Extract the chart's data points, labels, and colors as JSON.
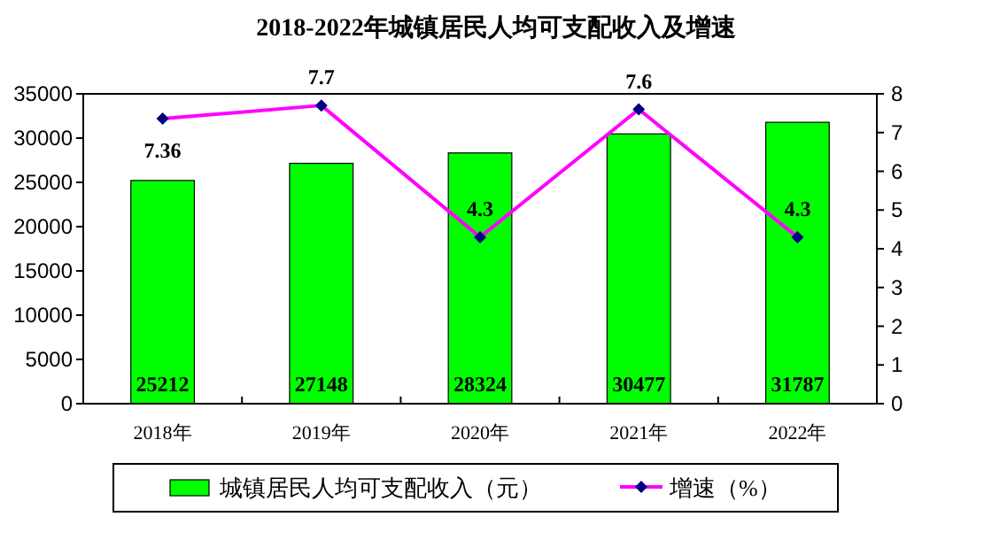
{
  "chart_data": {
    "type": "bar",
    "title": "2018-2022年城镇居民人均可支配收入及增速",
    "categories": [
      "2018年",
      "2019年",
      "2020年",
      "2021年",
      "2022年"
    ],
    "series": [
      {
        "name": "城镇居民人均可支配收入（元）",
        "color": "#00ff00",
        "values": [
          25212,
          27148,
          28324,
          30477,
          31787
        ]
      },
      {
        "name": "增速（%）",
        "type": "line",
        "axis": "y2",
        "color": "#ff00ff",
        "values": [
          7.36,
          7.7,
          4.3,
          7.6,
          4.3
        ]
      }
    ],
    "ylim": [
      0,
      35000
    ],
    "yticks": [
      0,
      5000,
      10000,
      15000,
      20000,
      25000,
      30000,
      35000
    ],
    "y2lim": [
      0,
      8
    ],
    "y2ticks": [
      0,
      1,
      2,
      3,
      4,
      5,
      6,
      7,
      8
    ],
    "data_labels": true,
    "legend": "bottom",
    "marker": "diamond",
    "grid": false
  }
}
